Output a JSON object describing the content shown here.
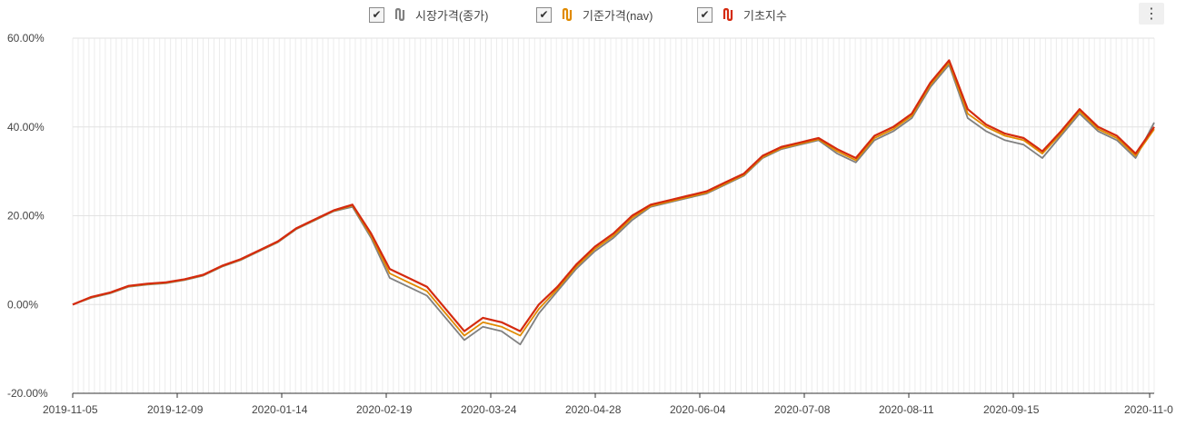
{
  "legend": {
    "items": [
      {
        "label": "시장가격(종가)",
        "color": "#808080",
        "checked": true
      },
      {
        "label": "기준가격(nav)",
        "color": "#e08a00",
        "checked": true
      },
      {
        "label": "기초지수",
        "color": "#d42a0f",
        "checked": true
      }
    ],
    "check_icon": "check-icon",
    "menu_icon": "more-vertical-icon",
    "menu_glyph": "⋮",
    "check_glyph": "✔"
  },
  "chart_data": {
    "type": "line",
    "title": "",
    "xlabel": "",
    "ylabel": "",
    "ylim": [
      -20,
      60
    ],
    "grid": true,
    "legend_position": "top",
    "y_ticks": [
      "60.00%",
      "40.00%",
      "20.00%",
      "0.00%",
      "-20.00%"
    ],
    "x_ticks": [
      "2019-11-05",
      "2019-12-09",
      "2020-01-14",
      "2020-02-19",
      "2020-03-24",
      "2020-04-28",
      "2020-06-04",
      "2020-07-08",
      "2020-08-11",
      "2020-09-15",
      "2020-11-0"
    ],
    "x": [
      "2019-11-05",
      "2019-11-12",
      "2019-11-19",
      "2019-11-26",
      "2019-12-03",
      "2019-12-09",
      "2019-12-16",
      "2019-12-23",
      "2019-12-30",
      "2020-01-07",
      "2020-01-14",
      "2020-01-21",
      "2020-01-28",
      "2020-02-04",
      "2020-02-11",
      "2020-02-19",
      "2020-02-21",
      "2020-02-25",
      "2020-02-28",
      "2020-03-04",
      "2020-03-09",
      "2020-03-12",
      "2020-03-16",
      "2020-03-19",
      "2020-03-24",
      "2020-03-27",
      "2020-04-01",
      "2020-04-07",
      "2020-04-14",
      "2020-04-21",
      "2020-04-28",
      "2020-05-06",
      "2020-05-13",
      "2020-05-20",
      "2020-05-27",
      "2020-06-04",
      "2020-06-09",
      "2020-06-15",
      "2020-06-22",
      "2020-06-29",
      "2020-07-08",
      "2020-07-15",
      "2020-07-22",
      "2020-07-29",
      "2020-08-05",
      "2020-08-11",
      "2020-08-18",
      "2020-08-25",
      "2020-08-28",
      "2020-09-02",
      "2020-09-08",
      "2020-09-15",
      "2020-09-22",
      "2020-09-29",
      "2020-10-07",
      "2020-10-14",
      "2020-10-21",
      "2020-10-27",
      "2020-11-03"
    ],
    "series": [
      {
        "name": "시장가격(종가)",
        "color": "#808080",
        "values": [
          0,
          1.5,
          2.5,
          4,
          4.5,
          4.8,
          5.5,
          6.5,
          8.5,
          10,
          12,
          14,
          17,
          19,
          21,
          22,
          15,
          6,
          4,
          2,
          -3,
          -8,
          -5,
          -6,
          -9,
          -2,
          3,
          8,
          12,
          15,
          19,
          22,
          23,
          24,
          25,
          27,
          29,
          33,
          35,
          36,
          37,
          34,
          32,
          37,
          39,
          42,
          49,
          54,
          42,
          39,
          37,
          36,
          33,
          38,
          43,
          39,
          37,
          33,
          41
        ]
      },
      {
        "name": "기준가격(nav)",
        "color": "#e08a00",
        "values": [
          0,
          1.6,
          2.6,
          4.1,
          4.6,
          4.9,
          5.6,
          6.6,
          8.6,
          10.1,
          12.1,
          14.1,
          17.1,
          19.1,
          21.1,
          22.3,
          15.5,
          7,
          5,
          3,
          -2,
          -7,
          -4,
          -5,
          -7,
          -1,
          3.5,
          8.5,
          12.5,
          15.5,
          19.5,
          22.2,
          23.2,
          24.2,
          25.2,
          27.2,
          29.2,
          33.2,
          35.2,
          36.2,
          37.2,
          34.5,
          32.5,
          37.5,
          39.5,
          42.5,
          49.5,
          54.5,
          43,
          40,
          38,
          37,
          34,
          38.5,
          43.5,
          39.5,
          37.5,
          33.5,
          39.5
        ]
      },
      {
        "name": "기초지수",
        "color": "#d42a0f",
        "values": [
          0,
          1.7,
          2.7,
          4.2,
          4.7,
          5,
          5.7,
          6.7,
          8.7,
          10.2,
          12.2,
          14.2,
          17.2,
          19.2,
          21.2,
          22.5,
          16,
          8,
          6,
          4,
          -1,
          -6,
          -3,
          -4,
          -6,
          0,
          4,
          9,
          13,
          16,
          20,
          22.5,
          23.5,
          24.5,
          25.5,
          27.5,
          29.5,
          33.5,
          35.5,
          36.5,
          37.5,
          35,
          33,
          38,
          40,
          43,
          50,
          55,
          44,
          40.5,
          38.5,
          37.5,
          34.5,
          39,
          44,
          40,
          38,
          34,
          40
        ]
      }
    ]
  }
}
